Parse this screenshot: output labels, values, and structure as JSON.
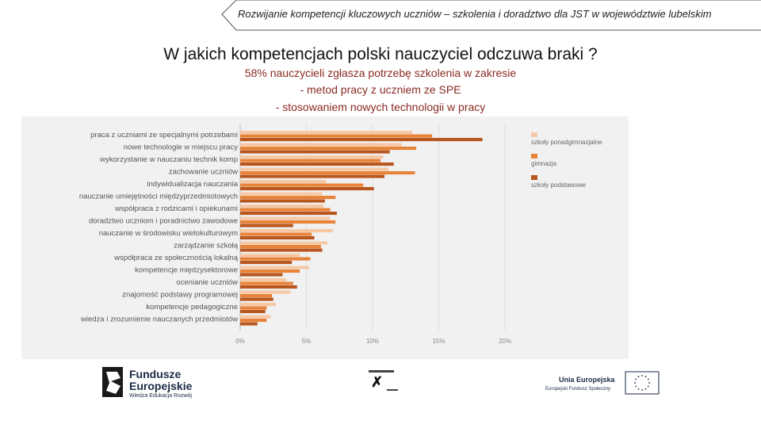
{
  "banner": {
    "text": "Rozwijanie kompetencji kluczowych uczniów – szkolenia i doradztwo dla JST w województwie lubelskim"
  },
  "title": "W jakich kompetencjach polski nauczyciel odczuwa braki ?",
  "subtitle": {
    "line1": "58%  nauczycieli zgłasza potrzebę szkolenia w zakresie",
    "line2": "- metod pracy z uczniem ze SPE",
    "line3": "- stosowaniem nowych technologii w pracy"
  },
  "chart_data": {
    "type": "bar",
    "orientation": "horizontal",
    "categories": [
      "praca z uczniami ze specjalnymi potrzebami",
      "nowe technologie w miejscu pracy",
      "wykorzystanie w nauczaniu technik komp",
      "zachowanie uczniów",
      "indywidualizacja nauczania",
      "nauczanie umiejętności międzyprzedmiotowych",
      "współpraca z rodzicami i opiekunami",
      "doradztwo uczniom i poradnictwo zawodowe",
      "nauczanie w środowisku wielokulturowym",
      "zarządzanie szkołą",
      "współpraca ze społecznością lokalną",
      "kompetencje międzysektorowe",
      "ocenianie uczniów",
      "znajomość podstawy programowej",
      "kompetencje pedagogiczne",
      "wiedza i zrozumienie nauczanych przedmiotów"
    ],
    "series": [
      {
        "name": "szkoły ponadgimnazjalne",
        "color": "#f6c8a6",
        "values": [
          13.0,
          12.2,
          10.8,
          11.2,
          6.5,
          6.2,
          6.3,
          6.8,
          7.0,
          6.6,
          4.5,
          5.2,
          3.5,
          3.8,
          2.7,
          2.3
        ]
      },
      {
        "name": "gimnazja",
        "color": "#e8833a",
        "values": [
          14.5,
          13.3,
          10.6,
          13.2,
          9.3,
          7.2,
          6.8,
          7.2,
          5.4,
          6.1,
          5.3,
          4.5,
          4.0,
          2.4,
          2.0,
          2.0
        ]
      },
      {
        "name": "szkoły podstawowe",
        "color": "#b8561d",
        "values": [
          18.3,
          11.3,
          11.6,
          10.9,
          10.1,
          6.4,
          7.3,
          4.0,
          5.6,
          6.2,
          3.9,
          3.2,
          4.3,
          2.5,
          1.9,
          1.3
        ]
      }
    ],
    "xticks": [
      "0%",
      "5%",
      "10%",
      "15%",
      "20%"
    ],
    "xlim": [
      0,
      20
    ],
    "legend_position": "right"
  },
  "footer": {
    "fe_line1": "Fundusze",
    "fe_line2": "Europejskie",
    "fe_line3": "Wiedza Edukacja Rozwój",
    "eu_line1": "Unia Europejska",
    "eu_line2": "Europejski Fundusz Społeczny"
  }
}
